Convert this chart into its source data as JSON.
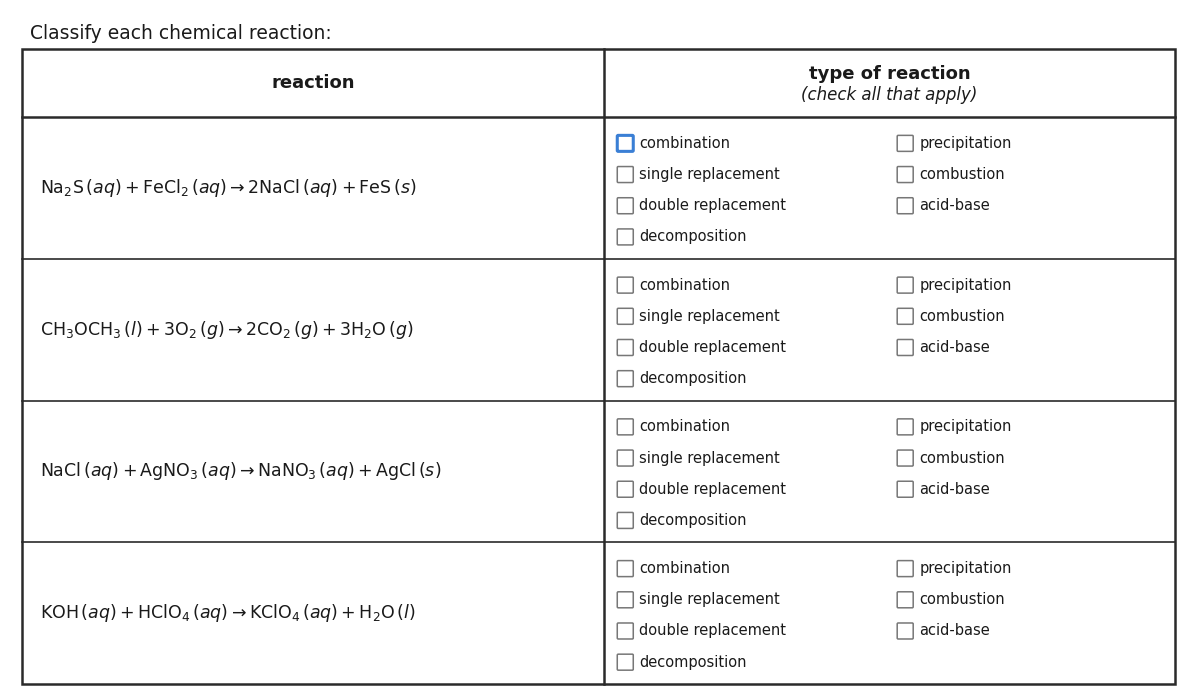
{
  "title": "Classify each chemical reaction:",
  "header_col1": "reaction",
  "header_col2_line1": "type of reaction",
  "header_col2_line2": "(check all that apply)",
  "reactions": [
    "$\\mathrm{Na_2S}\\,(aq) + \\mathrm{FeCl_2}\\,(aq) \\rightarrow 2\\mathrm{NaCl}\\,(aq) + \\mathrm{FeS}\\,(s)$",
    "$\\mathrm{CH_3OCH_3}\\,(l) + 3\\mathrm{O_2}\\,(g) \\rightarrow 2\\mathrm{CO_2}\\,(g) + 3\\mathrm{H_2O}\\,(g)$",
    "$\\mathrm{NaCl}\\,(aq) + \\mathrm{AgNO_3}\\,(aq) \\rightarrow \\mathrm{NaNO_3}\\,(aq) + \\mathrm{AgCl}\\,(s)$",
    "$\\mathrm{KOH}\\,(aq) + \\mathrm{HClO_4}\\,(aq) \\rightarrow \\mathrm{KClO_4}\\,(aq) + \\mathrm{H_2O}\\,(l)$"
  ],
  "checkboxes_left": [
    "combination",
    "single replacement",
    "double replacement",
    "decomposition"
  ],
  "checkboxes_right": [
    "precipitation",
    "combustion",
    "acid-base"
  ],
  "highlighted_row": 0,
  "highlighted_cb": 0,
  "bg_color": "#ffffff",
  "border_color": "#2a2a2a",
  "highlight_color": "#3a7fd5",
  "col_split": 0.505
}
